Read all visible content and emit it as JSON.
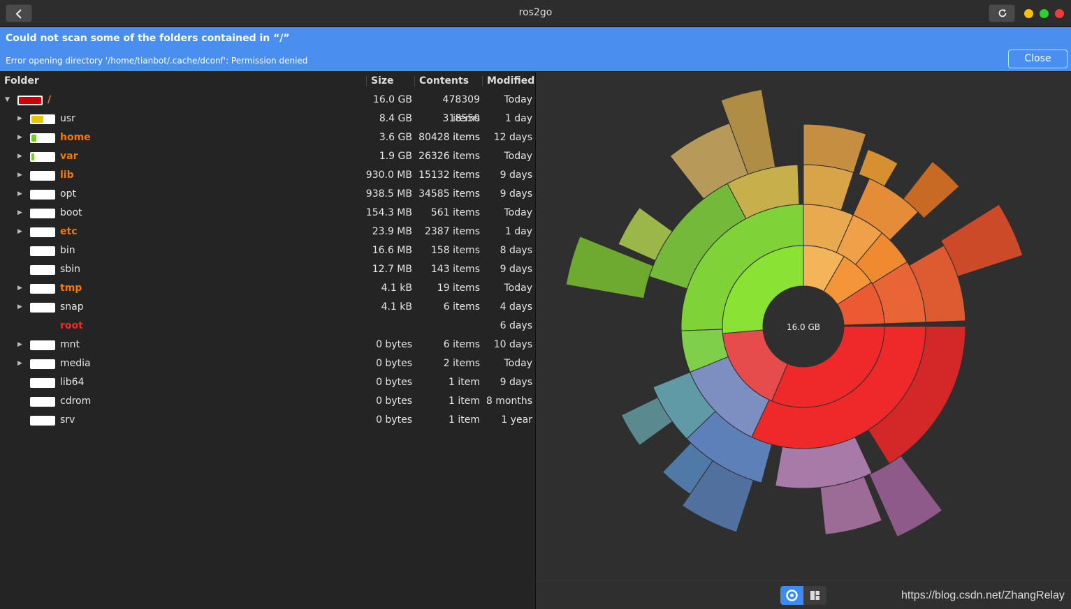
{
  "window": {
    "title": "ros2go"
  },
  "infobar": {
    "title": "Could not scan some of the folders contained in “/”",
    "message": "Error opening directory '/home/tianbot/.cache/dconf': Permission denied",
    "close_label": "Close"
  },
  "table": {
    "headers": {
      "folder": "Folder",
      "size": "Size",
      "contents": "Contents",
      "modified": "Modified"
    },
    "rows": [
      {
        "name": "/",
        "size": "16.0 GB",
        "contents": "478309 items",
        "modified": "Today",
        "highlight": true,
        "fill": 1.0,
        "color": "#cc0000"
      },
      {
        "name": "usr",
        "size": "8.4 GB",
        "contents": "318550 items",
        "modified": "1 day",
        "highlight": false,
        "fill": 0.53,
        "color": "#e6c700"
      },
      {
        "name": "home",
        "size": "3.6 GB",
        "contents": "80428 items",
        "modified": "12 days",
        "highlight": true,
        "fill": 0.22,
        "color": "#73d216"
      },
      {
        "name": "var",
        "size": "1.9 GB",
        "contents": "26326 items",
        "modified": "Today",
        "highlight": true,
        "fill": 0.12,
        "color": "#73d216"
      },
      {
        "name": "lib",
        "size": "930.0 MB",
        "contents": "15132 items",
        "modified": "9 days",
        "highlight": true,
        "fill": 0.0,
        "color": "#73d216"
      },
      {
        "name": "opt",
        "size": "938.5 MB",
        "contents": "34585 items",
        "modified": "9 days",
        "highlight": false,
        "fill": 0.0,
        "color": "#73d216"
      },
      {
        "name": "boot",
        "size": "154.3 MB",
        "contents": "561 items",
        "modified": "Today",
        "highlight": false,
        "fill": 0.0,
        "color": "#73d216"
      },
      {
        "name": "etc",
        "size": "23.9 MB",
        "contents": "2387 items",
        "modified": "1 day",
        "highlight": true,
        "fill": 0.0,
        "color": "#73d216"
      },
      {
        "name": "bin",
        "size": "16.6 MB",
        "contents": "158 items",
        "modified": "8 days",
        "highlight": false,
        "fill": 0.0,
        "color": "#73d216"
      },
      {
        "name": "sbin",
        "size": "12.7 MB",
        "contents": "143 items",
        "modified": "9 days",
        "highlight": false,
        "fill": 0.0,
        "color": "#73d216"
      },
      {
        "name": "tmp",
        "size": "4.1 kB",
        "contents": "19 items",
        "modified": "Today",
        "highlight": true,
        "fill": 0.0,
        "color": "#73d216"
      },
      {
        "name": "snap",
        "size": "4.1 kB",
        "contents": "6 items",
        "modified": "4 days",
        "highlight": false,
        "fill": 0.0,
        "color": "#73d216"
      },
      {
        "name": "root",
        "size": "",
        "contents": "",
        "modified": "6 days",
        "highlight": true,
        "fill": 0.0,
        "color": "#73d216",
        "no_bar": true,
        "red": true
      },
      {
        "name": "mnt",
        "size": "0 bytes",
        "contents": "6 items",
        "modified": "10 days",
        "highlight": false,
        "fill": 0.0,
        "color": "#73d216"
      },
      {
        "name": "media",
        "size": "0 bytes",
        "contents": "2 items",
        "modified": "Today",
        "highlight": false,
        "fill": 0.0,
        "color": "#73d216"
      },
      {
        "name": "lib64",
        "size": "0 bytes",
        "contents": "1 item",
        "modified": "9 days",
        "highlight": false,
        "fill": 0.0,
        "color": "#73d216"
      },
      {
        "name": "cdrom",
        "size": "0 bytes",
        "contents": "1 item",
        "modified": "8 months",
        "highlight": false,
        "fill": 0.0,
        "color": "#73d216"
      },
      {
        "name": "srv",
        "size": "0 bytes",
        "contents": "1 item",
        "modified": "1 year",
        "highlight": false,
        "fill": 0.0,
        "color": "#73d216"
      }
    ]
  },
  "chart": {
    "center_label": "16.0 GB"
  },
  "watermark": "https://blog.csdn.net/ZhangRelay",
  "colors": {
    "accent": "#4a8ff0",
    "highlight_text": "#f57900",
    "root_text": "#ef2929"
  }
}
